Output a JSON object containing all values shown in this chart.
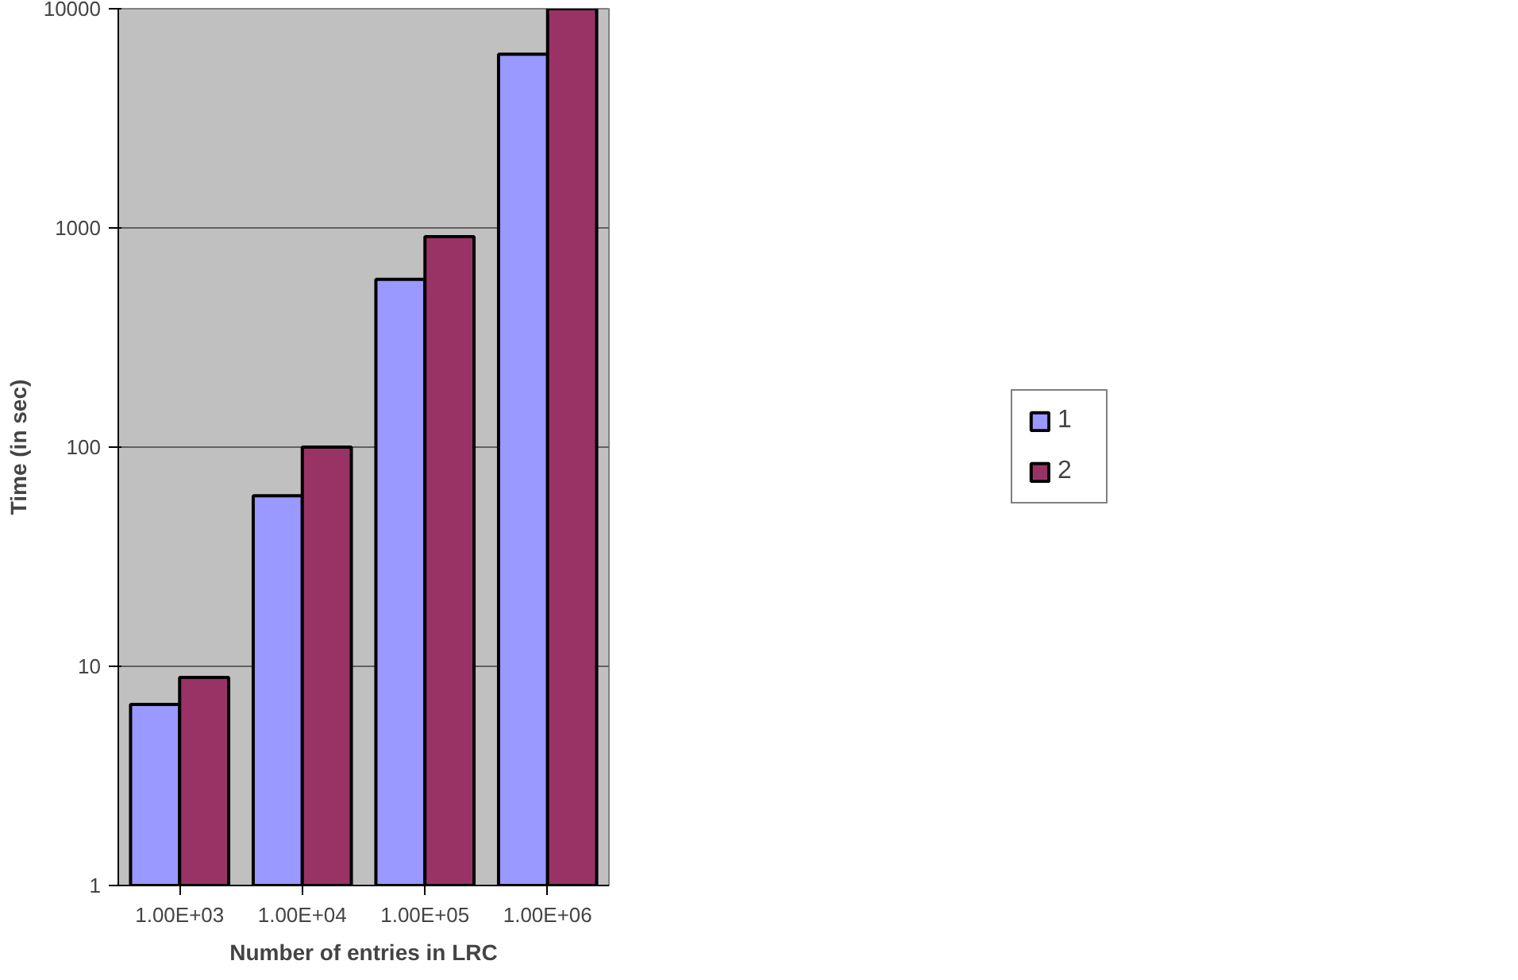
{
  "chart_data": {
    "type": "bar",
    "xlabel": "Number of entries in LRC",
    "ylabel": "Time (in sec)",
    "categories": [
      "1.00E+03",
      "1.00E+04",
      "1.00E+05",
      "1.00E+06"
    ],
    "series": [
      {
        "name": "1",
        "color": "#9999ff",
        "values": [
          6.7,
          60,
          583,
          6200
        ]
      },
      {
        "name": "2",
        "color": "#993366",
        "values": [
          8.9,
          100,
          913,
          10000
        ]
      }
    ],
    "log": "y",
    "ylim": [
      1,
      10000
    ],
    "yticks": [
      1,
      10,
      100,
      1000,
      10000
    ],
    "grid": "y",
    "legend": "right"
  }
}
